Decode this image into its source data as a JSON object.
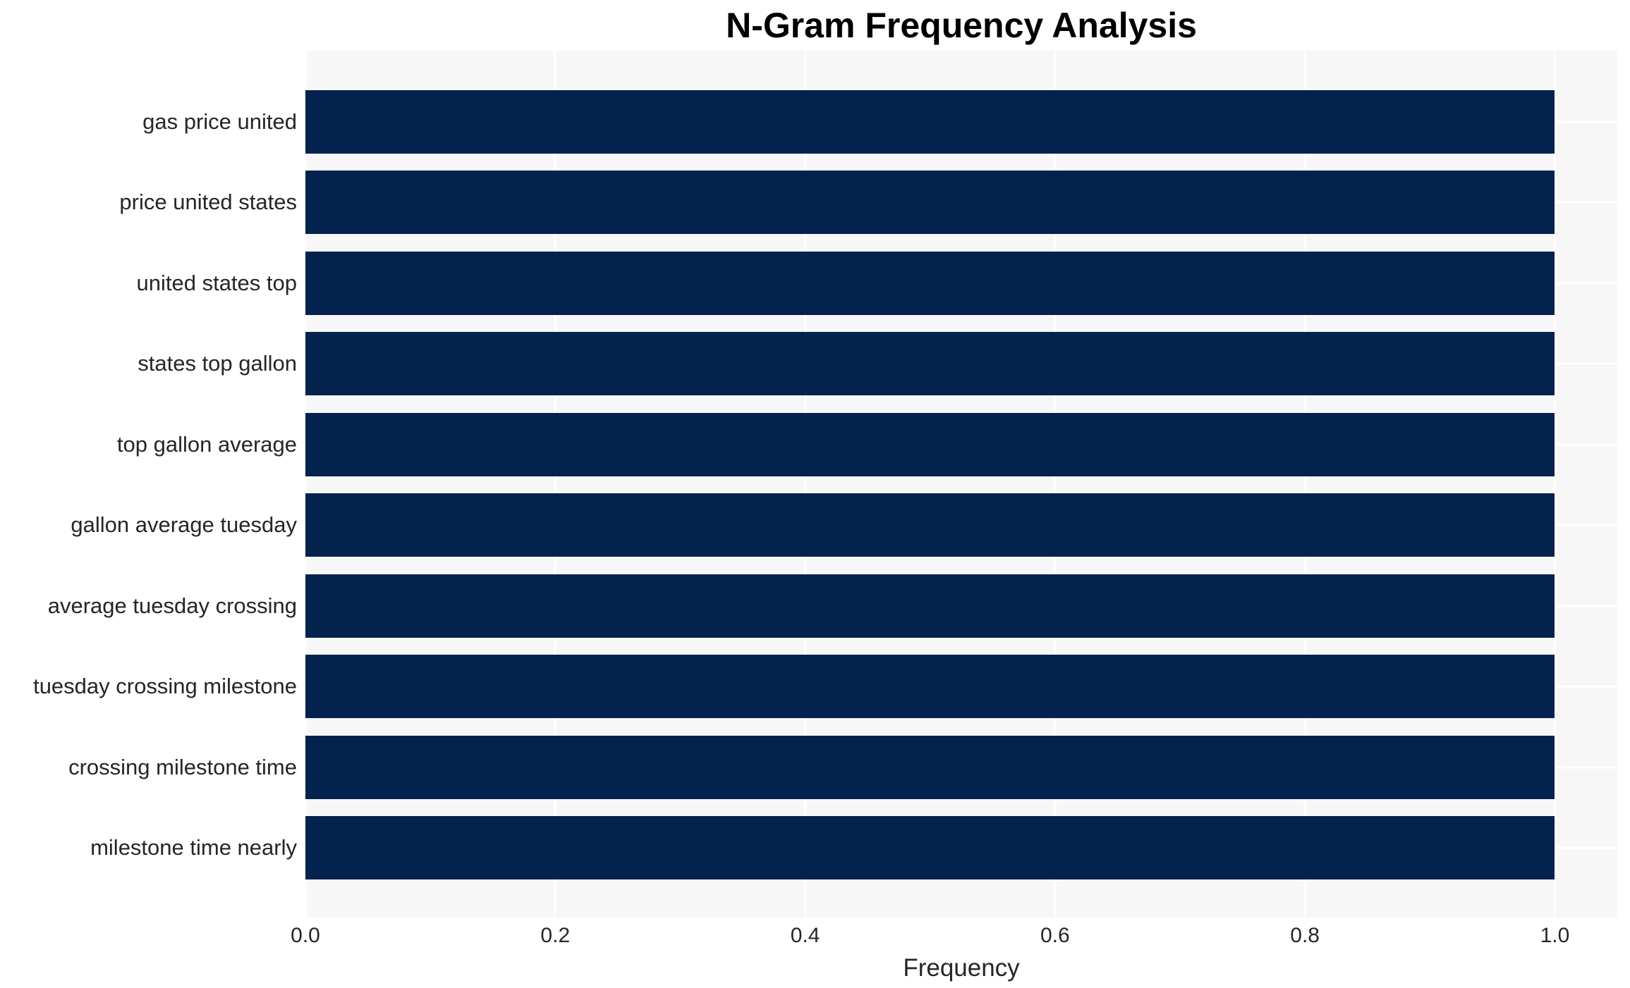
{
  "chart_data": {
    "type": "bar",
    "orientation": "horizontal",
    "title": "N-Gram Frequency Analysis",
    "categories": [
      "gas price united",
      "price united states",
      "united states top",
      "states top gallon",
      "top gallon average",
      "gallon average tuesday",
      "average tuesday crossing",
      "tuesday crossing milestone",
      "crossing milestone time",
      "milestone time nearly"
    ],
    "values": [
      1.0,
      1.0,
      1.0,
      1.0,
      1.0,
      1.0,
      1.0,
      1.0,
      1.0,
      1.0
    ],
    "xlabel": "Frequency",
    "ylabel": "",
    "xlim": [
      0,
      1.05
    ],
    "x_ticks": [
      0.0,
      0.2,
      0.4,
      0.6,
      0.8,
      1.0
    ],
    "x_tick_labels": [
      "0.0",
      "0.2",
      "0.4",
      "0.6",
      "0.8",
      "1.0"
    ],
    "grid": "on",
    "legend": "none",
    "colors": {
      "bar": "#03224e",
      "plot_background": "#f7f7f7",
      "gridline": "#ffffff",
      "tick_text": "#262626",
      "title_text": "#000000"
    }
  }
}
